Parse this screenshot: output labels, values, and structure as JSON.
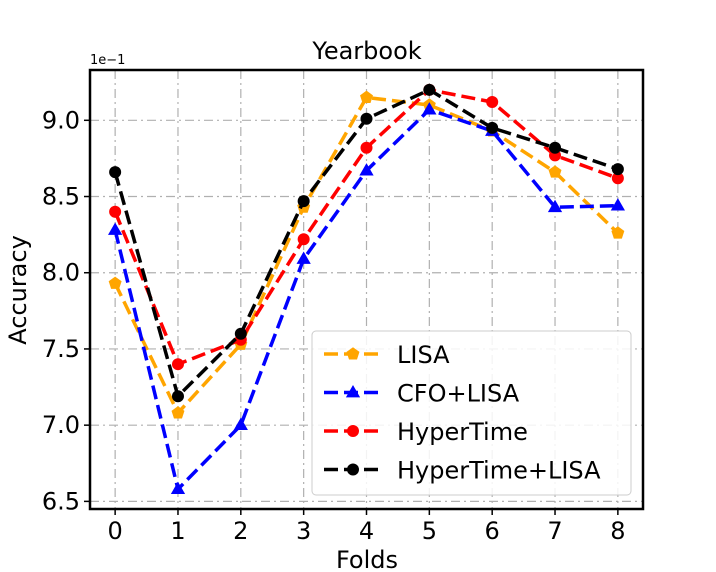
{
  "chart_data": {
    "type": "line",
    "title": "Yearbook",
    "xlabel": "Folds",
    "ylabel": "Accuracy",
    "y_offset_label": "1e−1",
    "x": [
      0,
      1,
      2,
      3,
      4,
      5,
      6,
      7,
      8
    ],
    "x_tick_labels": [
      "0",
      "1",
      "2",
      "3",
      "4",
      "5",
      "6",
      "7",
      "8"
    ],
    "y_ticks": [
      6.5,
      7.0,
      7.5,
      8.0,
      8.5,
      9.0
    ],
    "y_tick_labels": [
      "6.5",
      "7.0",
      "7.5",
      "8.0",
      "8.5",
      "9.0"
    ],
    "xlim": [
      -0.4,
      8.4
    ],
    "ylim": [
      6.45,
      9.33
    ],
    "grid": true,
    "legend_position": "lower right",
    "series": [
      {
        "name": "LISA",
        "color": "#FFA500",
        "marker": "pentagon",
        "values": [
          7.93,
          7.08,
          7.53,
          8.43,
          9.15,
          9.1,
          8.93,
          8.66,
          8.26
        ]
      },
      {
        "name": "CFO+LISA",
        "color": "#0000FF",
        "marker": "triangle",
        "values": [
          8.28,
          6.58,
          7.0,
          8.09,
          8.67,
          9.07,
          8.93,
          8.43,
          8.44
        ]
      },
      {
        "name": "HyperTime",
        "color": "#FF0000",
        "marker": "circle",
        "values": [
          8.4,
          7.4,
          7.56,
          8.22,
          8.82,
          9.2,
          9.12,
          8.77,
          8.62
        ]
      },
      {
        "name": "HyperTime+LISA",
        "color": "#000000",
        "marker": "circle",
        "values": [
          8.66,
          7.19,
          7.6,
          8.47,
          9.01,
          9.2,
          8.95,
          8.82,
          8.68
        ]
      }
    ]
  }
}
